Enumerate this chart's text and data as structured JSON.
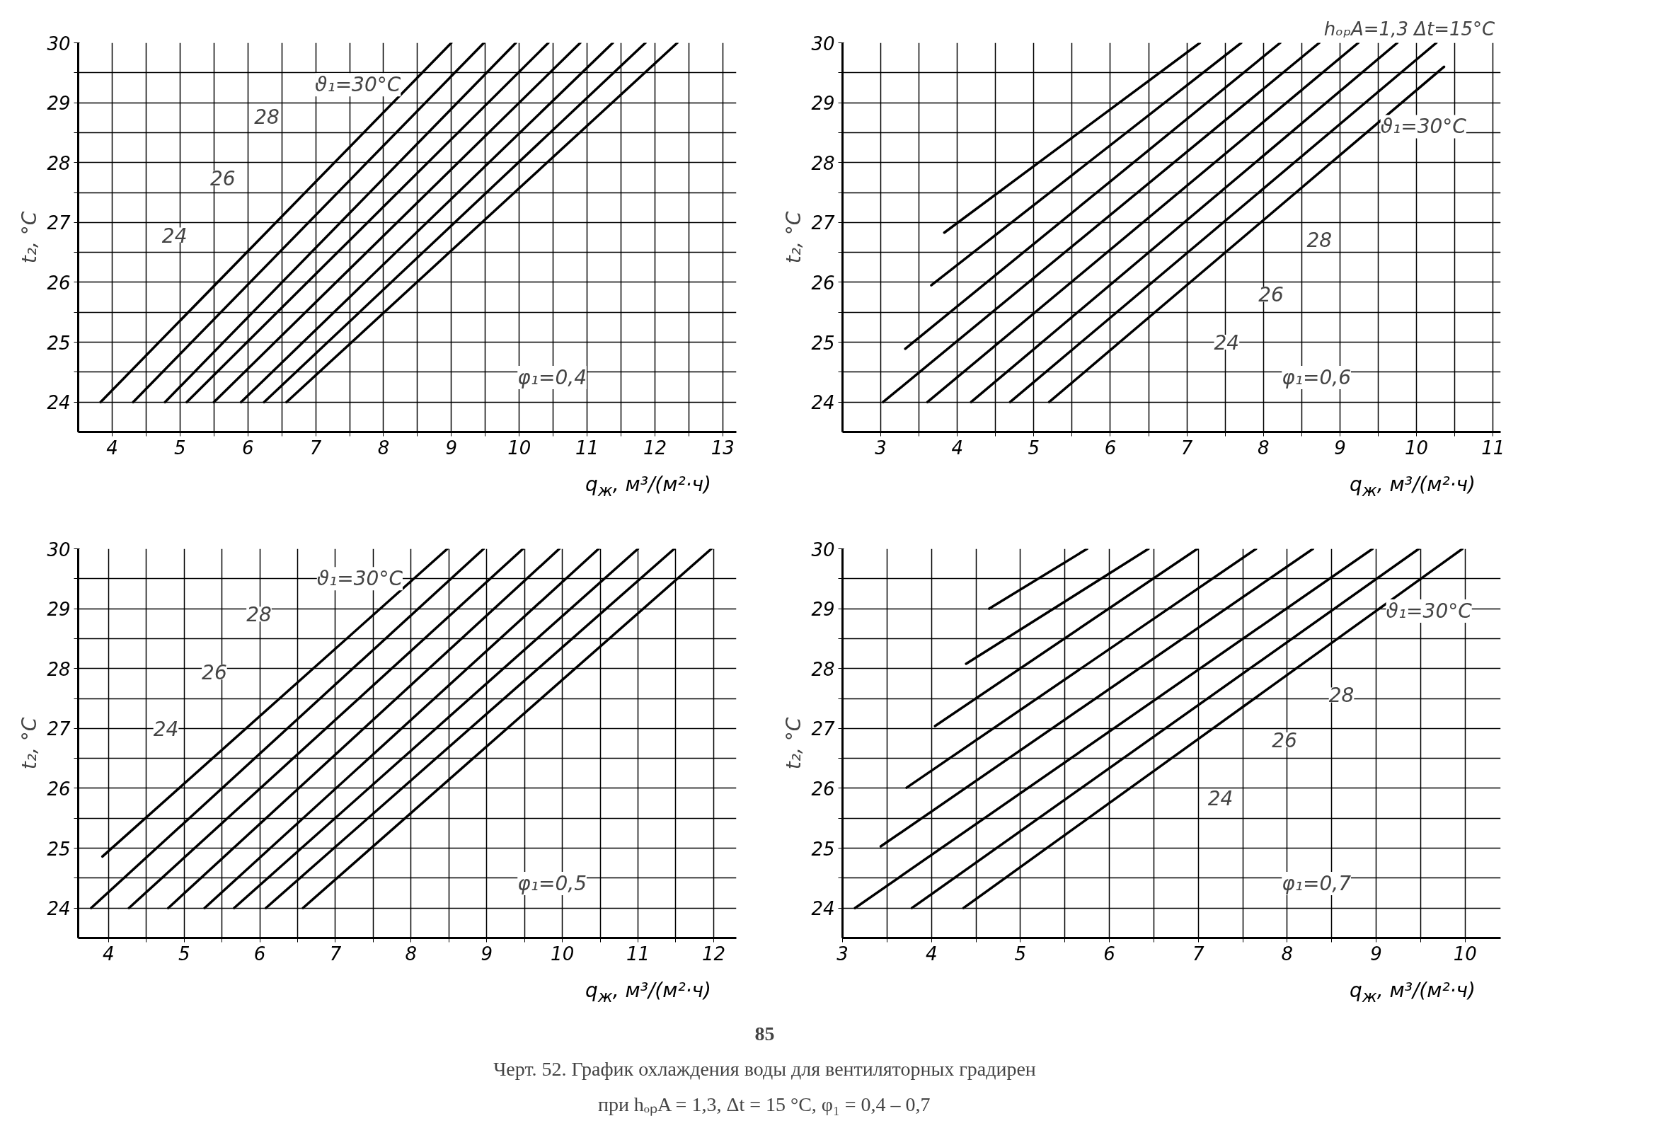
{
  "chart_data": [
    {
      "type": "line",
      "xlabel": "q$_{ж}$, м³/(м²·ч)",
      "ylabel": "t₂, °C",
      "xlim": [
        3.5,
        13.2
      ],
      "ylim": [
        23.5,
        30
      ],
      "grid": true,
      "xticks": [
        4,
        {
          "value": 4.5,
          "label": null
        },
        5,
        {
          "value": 5.5,
          "label": null
        },
        6,
        {
          "value": 6.5,
          "label": null
        },
        7,
        {
          "value": 7.5,
          "label": null
        },
        8,
        {
          "value": 8.5,
          "label": null
        },
        9,
        {
          "value": 9.5,
          "label": null
        },
        10,
        {
          "value": 10.5,
          "label": null
        },
        11,
        {
          "value": 11.5,
          "label": null
        },
        12,
        {
          "value": 12.5,
          "label": null
        },
        13
      ],
      "yticks": [
        24,
        {
          "value": 24.5,
          "label": null
        },
        25,
        {
          "value": 25.5,
          "label": null
        },
        26,
        {
          "value": 26.5,
          "label": null
        },
        27,
        {
          "value": 27.5,
          "label": null
        },
        28,
        {
          "value": 28.5,
          "label": null
        },
        29,
        {
          "value": 29.5,
          "label": null
        },
        30
      ],
      "series": [
        {
          "color": "#000000",
          "x": [
            3.83,
            9.0
          ],
          "values": [
            24,
            30
          ]
        },
        {
          "color": "#000000",
          "x": [
            4.31,
            9.48
          ],
          "values": [
            24,
            30
          ]
        },
        {
          "color": "#000000",
          "x": [
            4.78,
            9.95
          ],
          "values": [
            24,
            30
          ]
        },
        {
          "color": "#000000",
          "x": [
            5.1,
            10.43
          ],
          "values": [
            24,
            30
          ]
        },
        {
          "color": "#000000",
          "x": [
            5.5,
            10.9
          ],
          "values": [
            24,
            30
          ]
        },
        {
          "color": "#000000",
          "x": [
            5.9,
            11.38
          ],
          "values": [
            24,
            30
          ]
        },
        {
          "color": "#000000",
          "x": [
            6.24,
            11.86
          ],
          "values": [
            24,
            30
          ]
        },
        {
          "color": "#000000",
          "x": [
            6.57,
            12.33
          ],
          "values": [
            24,
            30
          ]
        }
      ],
      "annotations": [
        {
          "text": "ϑ₁=30°C",
          "x": 8.4,
          "y": 29.3
        },
        {
          "text": "28",
          "x": 6.28,
          "y": 28.77
        },
        {
          "text": "26",
          "x": 5.63,
          "y": 27.74
        },
        {
          "text": "24",
          "x": 4.92,
          "y": 26.79
        },
        "φ₁=0,4"
      ]
    },
    {
      "type": "line",
      "subtitle": "hₒₚA=1,3  Δt=15°C",
      "xlabel": "q$_{ж}$, м³/(м²·ч)",
      "ylabel": "t₂, °C",
      "xlim": [
        2.5,
        11.1
      ],
      "ylim": [
        23.5,
        30
      ],
      "grid": true,
      "xticks": [
        3,
        {
          "value": 3.5,
          "label": null
        },
        4,
        {
          "value": 4.5,
          "label": null
        },
        5,
        {
          "value": 5.5,
          "label": null
        },
        6,
        {
          "value": 6.5,
          "label": null
        },
        7,
        {
          "value": 7.5,
          "label": null
        },
        8,
        {
          "value": 8.5,
          "label": null
        },
        9,
        {
          "value": 9.5,
          "label": null
        },
        10,
        {
          "value": 10.5,
          "label": null
        },
        11
      ],
      "yticks": [
        24,
        {
          "value": 24.5,
          "label": null
        },
        25,
        {
          "value": 25.5,
          "label": null
        },
        26,
        {
          "value": 26.5,
          "label": null
        },
        27,
        {
          "value": 27.5,
          "label": null
        },
        28,
        {
          "value": 28.5,
          "label": null
        },
        29,
        {
          "value": 29.5,
          "label": null
        },
        30
      ],
      "series": [
        {
          "color": "#000000",
          "x": [
            3.83,
            7.17
          ],
          "values": [
            26.83,
            30
          ]
        },
        {
          "color": "#000000",
          "x": [
            3.66,
            7.71
          ],
          "values": [
            25.95,
            30
          ]
        },
        {
          "color": "#000000",
          "x": [
            3.32,
            8.22
          ],
          "values": [
            24.89,
            30
          ]
        },
        {
          "color": "#000000",
          "x": [
            3.03,
            8.73
          ],
          "values": [
            24,
            30
          ]
        },
        {
          "color": "#000000",
          "x": [
            3.61,
            9.24
          ],
          "values": [
            24,
            30
          ]
        },
        {
          "color": "#000000",
          "x": [
            4.18,
            9.75
          ],
          "values": [
            24,
            30
          ]
        },
        {
          "color": "#000000",
          "x": [
            4.69,
            10.26
          ],
          "values": [
            24,
            30
          ]
        },
        {
          "color": "#000000",
          "x": [
            5.2,
            10.36
          ],
          "values": [
            24,
            29.6
          ]
        }
      ],
      "annotations": [
        {
          "text": "ϑ₁=30°C",
          "x": 9.4,
          "y": 28.6
        },
        {
          "text": "28",
          "x": 8.73,
          "y": 26.71
        },
        {
          "text": "26",
          "x": 8.1,
          "y": 25.8
        },
        {
          "text": "24",
          "x": 7.52,
          "y": 25.0
        },
        "φ₁=0,6"
      ]
    },
    {
      "type": "line",
      "xlabel": "q$_{ж}$, м³/(м²·ч)",
      "ylabel": "t₂, °C",
      "xlim": [
        3.6,
        12.3
      ],
      "ylim": [
        23.5,
        30
      ],
      "grid": true,
      "xticks": [
        4,
        {
          "value": 4.5,
          "label": null
        },
        5,
        {
          "value": 5.5,
          "label": null
        },
        6,
        {
          "value": 6.5,
          "label": null
        },
        7,
        {
          "value": 7.5,
          "label": null
        },
        8,
        {
          "value": 8.5,
          "label": null
        },
        9,
        {
          "value": 9.5,
          "label": null
        },
        10,
        {
          "value": 10.5,
          "label": null
        },
        11,
        {
          "value": 11.5,
          "label": null
        },
        12
      ],
      "yticks": [
        24,
        {
          "value": 24.5,
          "label": null
        },
        25,
        {
          "value": 25.5,
          "label": null
        },
        26,
        {
          "value": 26.5,
          "label": null
        },
        27,
        {
          "value": 27.5,
          "label": null
        },
        28,
        {
          "value": 28.5,
          "label": null
        },
        29,
        {
          "value": 29.5,
          "label": null
        },
        30
      ],
      "series": [
        {
          "color": "#000000",
          "x": [
            3.92,
            8.48
          ],
          "values": [
            24.86,
            30
          ]
        },
        {
          "color": "#000000",
          "x": [
            3.77,
            8.96
          ],
          "values": [
            24,
            30
          ]
        },
        {
          "color": "#000000",
          "x": [
            4.27,
            9.48
          ],
          "values": [
            24,
            30
          ]
        },
        {
          "color": "#000000",
          "x": [
            4.79,
            9.96
          ],
          "values": [
            24,
            30
          ]
        },
        {
          "color": "#000000",
          "x": [
            5.27,
            10.48
          ],
          "values": [
            24,
            30
          ]
        },
        {
          "color": "#000000",
          "x": [
            5.66,
            11.0
          ],
          "values": [
            24,
            30
          ]
        },
        {
          "color": "#000000",
          "x": [
            6.08,
            11.48
          ],
          "values": [
            24,
            30
          ]
        },
        {
          "color": "#000000",
          "x": [
            6.57,
            11.97
          ],
          "values": [
            24,
            30
          ]
        }
      ],
      "annotations": [
        {
          "text": "ϑ₁=30°C",
          "x": 8.02,
          "y": 29.5
        },
        {
          "text": "28",
          "x": 5.99,
          "y": 28.91
        },
        {
          "text": "26",
          "x": 5.4,
          "y": 27.94
        },
        {
          "text": "24",
          "x": 4.76,
          "y": 27.0
        },
        "φ₁=0,5",
        "85"
      ]
    },
    {
      "type": "line",
      "xlabel": "q$_{ж}$, м³/(м²·ч)",
      "ylabel": "t₂, °C",
      "xlim": [
        3.0,
        10.4
      ],
      "ylim": [
        23.5,
        30
      ],
      "grid": true,
      "xticks": [
        3,
        {
          "value": 3.5,
          "label": null
        },
        4,
        {
          "value": 4.5,
          "label": null
        },
        5,
        {
          "value": 5.5,
          "label": null
        },
        6,
        {
          "value": 6.5,
          "label": null
        },
        7,
        {
          "value": 7.5,
          "label": null
        },
        8,
        {
          "value": 8.5,
          "label": null
        },
        9,
        {
          "value": 9.5,
          "label": null
        },
        10
      ],
      "yticks": [
        24,
        {
          "value": 24.5,
          "label": null
        },
        25,
        {
          "value": 25.5,
          "label": null
        },
        26,
        {
          "value": 26.5,
          "label": null
        },
        27,
        {
          "value": 27.5,
          "label": null
        },
        28,
        {
          "value": 28.5,
          "label": null
        },
        29,
        {
          "value": 29.5,
          "label": null
        },
        30
      ],
      "series": [
        {
          "color": "#000000",
          "x": [
            4.65,
            5.75
          ],
          "values": [
            29.0,
            30
          ]
        },
        {
          "color": "#000000",
          "x": [
            4.39,
            6.44
          ],
          "values": [
            28.08,
            30
          ]
        },
        {
          "color": "#000000",
          "x": [
            4.04,
            6.99
          ],
          "values": [
            27.04,
            30
          ]
        },
        {
          "color": "#000000",
          "x": [
            3.72,
            7.65
          ],
          "values": [
            26.01,
            30
          ]
        },
        {
          "color": "#000000",
          "x": [
            3.43,
            8.29
          ],
          "values": [
            25.03,
            30
          ]
        },
        {
          "color": "#000000",
          "x": [
            3.14,
            8.96
          ],
          "values": [
            24,
            30
          ]
        },
        {
          "color": "#000000",
          "x": [
            3.78,
            9.48
          ],
          "values": [
            24,
            30
          ]
        },
        {
          "color": "#000000",
          "x": [
            4.36,
            9.97
          ],
          "values": [
            24,
            30
          ]
        }
      ],
      "annotations": [
        {
          "text": "ϑ₁=30°C",
          "x": 9.0,
          "y": 28.96
        },
        {
          "text": "28",
          "x": 8.61,
          "y": 27.56
        },
        {
          "text": "26",
          "x": 7.97,
          "y": 26.81
        },
        {
          "text": "24",
          "x": 7.25,
          "y": 25.84
        },
        "φ₁=0,7",
        "Черт. 52. График охлаждения воды для вентиляторных градирен",
        "при hₒₚA = 1,3, Δt = 15 °C, φ₁ = 0,4 – 0,7"
      ]
    }
  ]
}
